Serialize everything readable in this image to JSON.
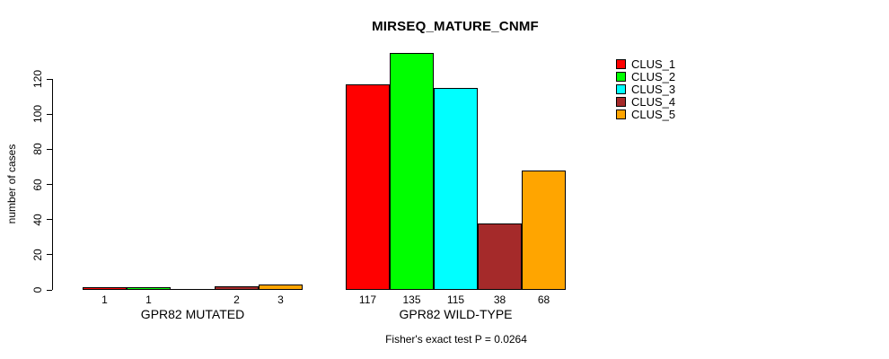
{
  "title": "MIRSEQ_MATURE_CNMF",
  "footer": "Fisher's exact test P = 0.0264",
  "chart_data": {
    "type": "bar",
    "title": "MIRSEQ_MATURE_CNMF",
    "categories": [
      "GPR82 MUTATED",
      "GPR82 WILD-TYPE"
    ],
    "series": [
      {
        "name": "CLUS_1",
        "color": "#ff0000",
        "values": [
          1,
          117
        ]
      },
      {
        "name": "CLUS_2",
        "color": "#00ff00",
        "values": [
          1,
          135
        ]
      },
      {
        "name": "CLUS_3",
        "color": "#00ffff",
        "values": [
          0,
          115
        ]
      },
      {
        "name": "CLUS_4",
        "color": "#a52a2a",
        "values": [
          2,
          38
        ]
      },
      {
        "name": "CLUS_5",
        "color": "#ffa500",
        "values": [
          3,
          68
        ]
      }
    ],
    "bar_value_labels_shown": true,
    "zero_values_unlabeled": true,
    "ylabel": "number of cases",
    "xlabel": "",
    "yticks": [
      0,
      20,
      40,
      60,
      80,
      100,
      120
    ],
    "ylim": [
      0,
      120
    ],
    "grid": false,
    "legend_position": "top-right",
    "legend_entries": [
      "CLUS_1",
      "CLUS_2",
      "CLUS_3",
      "CLUS_4",
      "CLUS_5"
    ],
    "annotation": "Fisher's exact test P = 0.0264"
  }
}
